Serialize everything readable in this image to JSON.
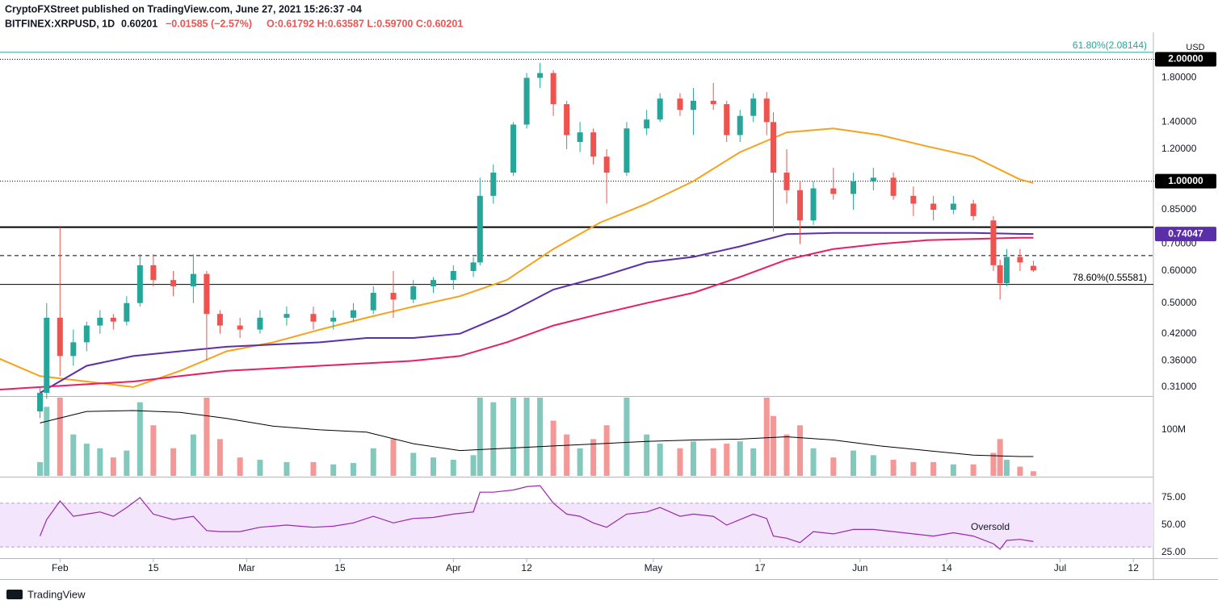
{
  "header": {
    "line1": "CryptoFXStreet published on TradingView.com, June 27, 2021 15:26:37 -04",
    "symbol": "BITFINEX:XRPUSD, 1D",
    "last": "0.60201",
    "change": "−0.01585 (−2.57%)",
    "ohlc": "O:0.61792  H:0.63587  L:0.59700  C:0.60201",
    "currency": "USD",
    "footer": "TradingView"
  },
  "chart_data": [
    {
      "type": "candlestick",
      "log_scale": true,
      "grid": false,
      "up_color": "#26a69a",
      "down_color": "#ef5350",
      "xlim": [
        "2021-01-23",
        "2021-07-15"
      ],
      "xticks": [
        {
          "value": "2021-02-01",
          "label": "Feb"
        },
        {
          "value": "2021-02-15",
          "label": "15"
        },
        {
          "value": "2021-03-01",
          "label": "Mar"
        },
        {
          "value": "2021-03-15",
          "label": "15"
        },
        {
          "value": "2021-04-01",
          "label": "Apr"
        },
        {
          "value": "2021-04-12",
          "label": "12"
        },
        {
          "value": "2021-05-01",
          "label": "May"
        },
        {
          "value": "2021-05-17",
          "label": "17"
        },
        {
          "value": "2021-06-01",
          "label": "Jun"
        },
        {
          "value": "2021-06-14",
          "label": "14"
        },
        {
          "value": "2021-07-01",
          "label": "Jul"
        },
        {
          "value": "2021-07-12",
          "label": "12"
        }
      ],
      "ylim": [
        0.296,
        2.28
      ],
      "yticks": [
        {
          "value": 0.31,
          "label": "0.31000"
        },
        {
          "value": 0.36,
          "label": "0.36000"
        },
        {
          "value": 0.42,
          "label": "0.42000"
        },
        {
          "value": 0.5,
          "label": "0.50000"
        },
        {
          "value": 0.6,
          "label": "0.60000"
        },
        {
          "value": 0.7,
          "label": "0.70000"
        },
        {
          "value": 0.85,
          "label": "0.85000"
        },
        {
          "value": 1.2,
          "label": "1.20000"
        },
        {
          "value": 1.4,
          "label": "1.40000"
        },
        {
          "value": 1.8,
          "label": "1.80000"
        }
      ],
      "x": [
        "2021-01-29",
        "2021-01-30",
        "2021-02-01",
        "2021-02-03",
        "2021-02-05",
        "2021-02-07",
        "2021-02-09",
        "2021-02-11",
        "2021-02-13",
        "2021-02-15",
        "2021-02-18",
        "2021-02-21",
        "2021-02-23",
        "2021-02-25",
        "2021-02-28",
        "2021-03-03",
        "2021-03-07",
        "2021-03-11",
        "2021-03-14",
        "2021-03-17",
        "2021-03-20",
        "2021-03-23",
        "2021-03-26",
        "2021-03-29",
        "2021-04-01",
        "2021-04-04",
        "2021-04-05",
        "2021-04-07",
        "2021-04-10",
        "2021-04-12",
        "2021-04-14",
        "2021-04-16",
        "2021-04-18",
        "2021-04-20",
        "2021-04-22",
        "2021-04-24",
        "2021-04-27",
        "2021-04-30",
        "2021-05-02",
        "2021-05-05",
        "2021-05-07",
        "2021-05-10",
        "2021-05-12",
        "2021-05-14",
        "2021-05-16",
        "2021-05-18",
        "2021-05-19",
        "2021-05-21",
        "2021-05-23",
        "2021-05-25",
        "2021-05-28",
        "2021-05-31",
        "2021-06-03",
        "2021-06-06",
        "2021-06-09",
        "2021-06-12",
        "2021-06-15",
        "2021-06-18",
        "2021-06-21",
        "2021-06-22",
        "2021-06-23",
        "2021-06-25",
        "2021-06-27"
      ],
      "open": [
        0.27,
        0.3,
        0.46,
        0.37,
        0.4,
        0.44,
        0.46,
        0.45,
        0.5,
        0.62,
        0.57,
        0.55,
        0.59,
        0.47,
        0.44,
        0.43,
        0.46,
        0.47,
        0.45,
        0.46,
        0.48,
        0.53,
        0.51,
        0.55,
        0.57,
        0.6,
        0.63,
        0.92,
        1.05,
        1.38,
        1.8,
        1.85,
        1.55,
        1.25,
        1.32,
        1.15,
        1.05,
        1.35,
        1.42,
        1.6,
        1.5,
        1.58,
        1.55,
        1.3,
        1.45,
        1.6,
        1.4,
        1.05,
        0.95,
        0.8,
        0.96,
        0.93,
        1.0,
        1.02,
        0.92,
        0.88,
        0.85,
        0.88,
        0.8,
        0.62,
        0.56,
        0.65,
        0.61792
      ],
      "high": [
        0.31,
        0.5,
        0.77,
        0.43,
        0.45,
        0.48,
        0.47,
        0.52,
        0.66,
        0.66,
        0.6,
        0.66,
        0.6,
        0.48,
        0.46,
        0.48,
        0.49,
        0.49,
        0.48,
        0.5,
        0.55,
        0.6,
        0.57,
        0.58,
        0.62,
        0.65,
        1.02,
        1.1,
        1.4,
        1.85,
        1.96,
        1.88,
        1.58,
        1.4,
        1.35,
        1.2,
        1.4,
        1.5,
        1.65,
        1.65,
        1.7,
        1.75,
        1.58,
        1.5,
        1.65,
        1.66,
        1.48,
        1.2,
        1.0,
        1.0,
        1.08,
        1.05,
        1.08,
        1.05,
        0.97,
        0.92,
        0.92,
        0.9,
        0.82,
        0.64,
        0.68,
        0.68,
        0.63587
      ],
      "low": [
        0.26,
        0.29,
        0.33,
        0.35,
        0.38,
        0.42,
        0.43,
        0.44,
        0.49,
        0.55,
        0.52,
        0.5,
        0.36,
        0.42,
        0.41,
        0.42,
        0.44,
        0.43,
        0.43,
        0.45,
        0.47,
        0.46,
        0.5,
        0.53,
        0.54,
        0.58,
        0.62,
        0.88,
        1.03,
        1.35,
        1.7,
        1.45,
        1.2,
        1.18,
        1.1,
        0.88,
        1.03,
        1.3,
        1.4,
        1.45,
        1.3,
        1.5,
        1.25,
        1.25,
        1.4,
        1.3,
        0.75,
        0.88,
        0.7,
        0.78,
        0.9,
        0.85,
        0.95,
        0.9,
        0.82,
        0.8,
        0.83,
        0.8,
        0.6,
        0.51,
        0.55,
        0.6,
        0.597
      ],
      "close": [
        0.3,
        0.46,
        0.37,
        0.4,
        0.44,
        0.46,
        0.45,
        0.5,
        0.62,
        0.57,
        0.55,
        0.59,
        0.47,
        0.44,
        0.43,
        0.46,
        0.47,
        0.45,
        0.46,
        0.48,
        0.53,
        0.51,
        0.55,
        0.57,
        0.6,
        0.63,
        0.92,
        1.05,
        1.38,
        1.8,
        1.85,
        1.55,
        1.3,
        1.32,
        1.15,
        1.05,
        1.35,
        1.42,
        1.6,
        1.5,
        1.58,
        1.55,
        1.3,
        1.45,
        1.6,
        1.4,
        1.05,
        0.95,
        0.8,
        0.96,
        0.93,
        1.0,
        1.02,
        0.92,
        0.88,
        0.85,
        0.88,
        0.82,
        0.62,
        0.56,
        0.65,
        0.63,
        0.60201
      ],
      "lines": [
        {
          "color": "#f7a21b",
          "x": [
            "2021-01-22",
            "2021-01-29",
            "2021-02-05",
            "2021-02-12",
            "2021-02-19",
            "2021-02-26",
            "2021-03-05",
            "2021-03-12",
            "2021-03-19",
            "2021-03-26",
            "2021-04-02",
            "2021-04-09",
            "2021-04-16",
            "2021-04-23",
            "2021-04-30",
            "2021-05-07",
            "2021-05-14",
            "2021-05-21",
            "2021-05-28",
            "2021-06-04",
            "2021-06-11",
            "2021-06-18",
            "2021-06-25",
            "2021-06-27"
          ],
          "values": [
            0.37,
            0.33,
            0.32,
            0.31,
            0.34,
            0.38,
            0.4,
            0.43,
            0.46,
            0.49,
            0.52,
            0.57,
            0.68,
            0.79,
            0.88,
            1.0,
            1.18,
            1.32,
            1.35,
            1.3,
            1.22,
            1.15,
            1.01,
            0.99
          ]
        },
        {
          "color": "#5b2fa8",
          "x": [
            "2021-01-22",
            "2021-01-29",
            "2021-02-05",
            "2021-02-12",
            "2021-02-19",
            "2021-02-26",
            "2021-03-05",
            "2021-03-12",
            "2021-03-19",
            "2021-03-26",
            "2021-04-02",
            "2021-04-09",
            "2021-04-16",
            "2021-04-23",
            "2021-04-30",
            "2021-05-07",
            "2021-05-14",
            "2021-05-21",
            "2021-05-28",
            "2021-06-04",
            "2021-06-11",
            "2021-06-18",
            "2021-06-25",
            "2021-06-27"
          ],
          "values": [
            null,
            0.3,
            0.35,
            0.37,
            0.38,
            0.39,
            0.395,
            0.4,
            0.41,
            0.41,
            0.42,
            0.47,
            0.54,
            0.58,
            0.63,
            0.65,
            0.69,
            0.74,
            0.745,
            0.745,
            0.745,
            0.745,
            0.741,
            0.7405
          ]
        },
        {
          "color": "#e91e63",
          "x": [
            "2021-01-22",
            "2021-01-29",
            "2021-02-05",
            "2021-02-12",
            "2021-02-19",
            "2021-02-26",
            "2021-03-05",
            "2021-03-12",
            "2021-03-19",
            "2021-03-26",
            "2021-04-02",
            "2021-04-09",
            "2021-04-16",
            "2021-04-23",
            "2021-04-30",
            "2021-05-07",
            "2021-05-14",
            "2021-05-21",
            "2021-05-28",
            "2021-06-04",
            "2021-06-11",
            "2021-06-18",
            "2021-06-25",
            "2021-06-27"
          ],
          "values": [
            0.305,
            0.31,
            0.315,
            0.32,
            0.33,
            0.34,
            0.345,
            0.35,
            0.355,
            0.36,
            0.37,
            0.4,
            0.44,
            0.47,
            0.5,
            0.53,
            0.58,
            0.64,
            0.68,
            0.7,
            0.715,
            0.72,
            0.725,
            0.725
          ]
        }
      ],
      "levels": [
        {
          "value": 2.08144,
          "label": "61.80%(2.08144)",
          "color": "#26a69a",
          "dash": "solid",
          "place": "chart"
        },
        {
          "value": 2.0,
          "label": "2.00000",
          "color": "#000000",
          "dash": "dotted",
          "place": "axis"
        },
        {
          "value": 1.0,
          "label": "1.00000",
          "color": "#000000",
          "dash": "dotted",
          "place": "axis"
        },
        {
          "value": 0.77,
          "color": "#000000",
          "dash": "thick"
        },
        {
          "value": 0.74047,
          "label": "0.74047",
          "color": "#5b2fa8",
          "dash": "none",
          "place": "axis"
        },
        {
          "value": 0.655,
          "color": "#000000",
          "dash": "dashed"
        },
        {
          "value": 0.55581,
          "label": "78.60%(0.55581)",
          "color": "#000000",
          "dash": "solid",
          "place": "chart"
        }
      ]
    },
    {
      "type": "bar",
      "up_color": "#83c8bd",
      "down_color": "#f39896",
      "line_color": "#000000",
      "ylim": [
        0,
        170
      ],
      "yticks": [
        {
          "value": 100,
          "label": "100M"
        }
      ],
      "values": [
        30,
        150,
        170,
        90,
        70,
        60,
        40,
        55,
        160,
        110,
        60,
        90,
        170,
        80,
        40,
        35,
        30,
        30,
        25,
        28,
        60,
        80,
        50,
        40,
        35,
        45,
        170,
        160,
        170,
        170,
        170,
        120,
        90,
        60,
        80,
        110,
        170,
        90,
        70,
        60,
        75,
        60,
        70,
        75,
        60,
        170,
        130,
        90,
        110,
        60,
        40,
        55,
        45,
        35,
        30,
        30,
        25,
        25,
        50,
        80,
        35,
        20,
        10
      ],
      "line_x": [
        "2021-01-29",
        "2021-02-05",
        "2021-02-12",
        "2021-02-19",
        "2021-02-26",
        "2021-03-05",
        "2021-03-12",
        "2021-03-19",
        "2021-03-26",
        "2021-04-02",
        "2021-04-09",
        "2021-04-16",
        "2021-04-23",
        "2021-04-30",
        "2021-05-07",
        "2021-05-14",
        "2021-05-21",
        "2021-05-28",
        "2021-06-04",
        "2021-06-11",
        "2021-06-18",
        "2021-06-25",
        "2021-06-27"
      ],
      "line_values": [
        115,
        140,
        142,
        138,
        125,
        108,
        100,
        95,
        70,
        55,
        60,
        65,
        70,
        75,
        78,
        80,
        85,
        78,
        65,
        55,
        45,
        42,
        42
      ]
    },
    {
      "type": "line",
      "color": "#9c27b0",
      "band": [
        30,
        70
      ],
      "band_color": "#f3e5fb",
      "ylim": [
        21.3,
        91.2
      ],
      "yticks": [
        {
          "value": 75,
          "label": "75.00"
        },
        {
          "value": 50,
          "label": "50.00"
        },
        {
          "value": 25,
          "label": "25.00"
        }
      ],
      "values": [
        40,
        55,
        72,
        58,
        60,
        62,
        58,
        66,
        75,
        60,
        55,
        58,
        45,
        44,
        44,
        48,
        50,
        48,
        49,
        52,
        58,
        52,
        56,
        57,
        60,
        62,
        80,
        80,
        82,
        85,
        86,
        70,
        60,
        58,
        52,
        48,
        60,
        62,
        66,
        58,
        60,
        58,
        50,
        55,
        60,
        56,
        40,
        38,
        34,
        44,
        42,
        46,
        46,
        44,
        42,
        40,
        43,
        40,
        33,
        28,
        36,
        37,
        35
      ],
      "annotation": "Oversold"
    }
  ]
}
